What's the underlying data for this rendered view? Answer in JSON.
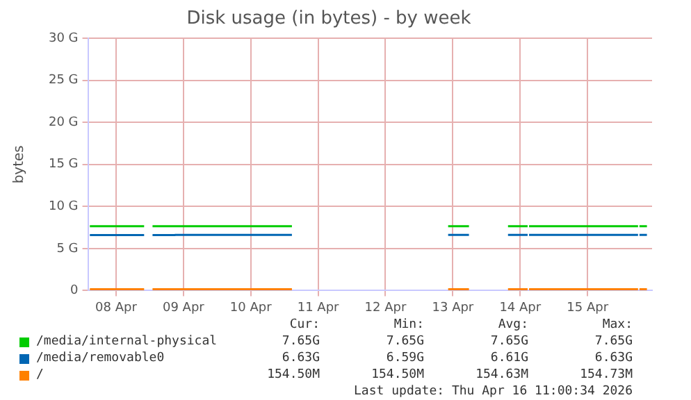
{
  "chart_data": {
    "type": "line",
    "title": "Disk usage (in bytes) - by week",
    "ylabel": "bytes",
    "xlim": [
      "2026-04-08T02:00",
      "2026-04-16T11:00"
    ],
    "xticks": [
      {
        "value": "2026-04-08T12:00",
        "label": "08 Apr"
      },
      {
        "value": "2026-04-09T12:00",
        "label": "09 Apr"
      },
      {
        "value": "2026-04-10T12:00",
        "label": "10 Apr"
      },
      {
        "value": "2026-04-11T12:00",
        "label": "11 Apr"
      },
      {
        "value": "2026-04-12T12:00",
        "label": "12 Apr"
      },
      {
        "value": "2026-04-13T12:00",
        "label": "13 Apr"
      },
      {
        "value": "2026-04-14T12:00",
        "label": "14 Apr"
      },
      {
        "value": "2026-04-15T12:00",
        "label": "15 Apr"
      }
    ],
    "ylim": [
      0,
      30
    ],
    "yticks": [
      0,
      {
        "value": 5,
        "label": "5 G"
      },
      {
        "value": 10,
        "label": "10 G"
      },
      {
        "value": 15,
        "label": "15 G"
      },
      {
        "value": 20,
        "label": "20 G"
      },
      {
        "value": 25,
        "label": "25 G"
      },
      {
        "value": 30,
        "label": "30 G"
      }
    ],
    "grid": true,
    "legend": "bottom",
    "marker": "none",
    "line_style": "solid",
    "series": [
      {
        "name": "/media/internal-physical",
        "color": "#00cc00",
        "x": [
          "2026-04-08T02:40",
          "2026-04-08T22:00",
          "2026-04-08T23:30",
          "2026-04-09T01:00",
          "2026-04-11T02:40",
          "2026-04-12T00:00",
          "2026-04-13T10:20",
          "2026-04-13T17:45",
          "2026-04-14T00:00",
          "2026-04-14T07:40",
          "2026-04-14T14:40",
          "2026-04-14T14:55",
          "2026-04-14T15:10",
          "2026-04-16T06:00",
          "2026-04-16T06:15",
          "2026-04-16T06:30",
          "2026-04-16T09:10"
        ],
        "values": [
          7.65,
          7.65,
          null,
          7.65,
          7.65,
          null,
          7.65,
          7.65,
          null,
          7.65,
          7.65,
          null,
          7.65,
          7.65,
          null,
          7.65,
          7.65
        ]
      },
      {
        "name": "/media/removable0",
        "color": "#0066b3",
        "x": [
          "2026-04-08T02:40",
          "2026-04-08T22:00",
          "2026-04-08T23:30",
          "2026-04-09T01:00",
          "2026-04-09T08:50",
          "2026-04-09T09:00",
          "2026-04-11T02:40",
          "2026-04-12T00:00",
          "2026-04-13T10:20",
          "2026-04-13T17:45",
          "2026-04-14T00:00",
          "2026-04-14T07:40",
          "2026-04-14T14:40",
          "2026-04-14T14:55",
          "2026-04-14T15:10",
          "2026-04-16T06:00",
          "2026-04-16T06:15",
          "2026-04-16T06:30",
          "2026-04-16T09:10"
        ],
        "values": [
          6.59,
          6.59,
          null,
          6.59,
          6.59,
          6.63,
          6.63,
          null,
          6.63,
          6.63,
          null,
          6.63,
          6.63,
          null,
          6.63,
          6.63,
          null,
          6.63,
          6.63
        ]
      },
      {
        "name": "/",
        "color": "#ff8000",
        "x": [
          "2026-04-08T02:40",
          "2026-04-08T22:00",
          "2026-04-08T23:30",
          "2026-04-09T01:00",
          "2026-04-11T02:40",
          "2026-04-12T00:00",
          "2026-04-13T10:20",
          "2026-04-13T17:45",
          "2026-04-14T00:00",
          "2026-04-14T07:40",
          "2026-04-14T14:40",
          "2026-04-14T14:55",
          "2026-04-14T15:10",
          "2026-04-16T06:00",
          "2026-04-16T06:15",
          "2026-04-16T06:30",
          "2026-04-16T09:10"
        ],
        "values": [
          0.15,
          0.15,
          null,
          0.15,
          0.15,
          null,
          0.15,
          0.15,
          null,
          0.15,
          0.15,
          null,
          0.15,
          0.15,
          null,
          0.15,
          0.15
        ]
      }
    ],
    "annotations": [
      "Cur:",
      "Min:",
      "Avg:",
      "Max:",
      "7.65G",
      "7.65G",
      "7.65G",
      "7.65G",
      "6.63G",
      "6.59G",
      "6.61G",
      "6.63G",
      "154.50M",
      "154.50M",
      "154.63M",
      "154.73M",
      "Last update: Thu Apr 16 11:00:34 2026"
    ]
  }
}
